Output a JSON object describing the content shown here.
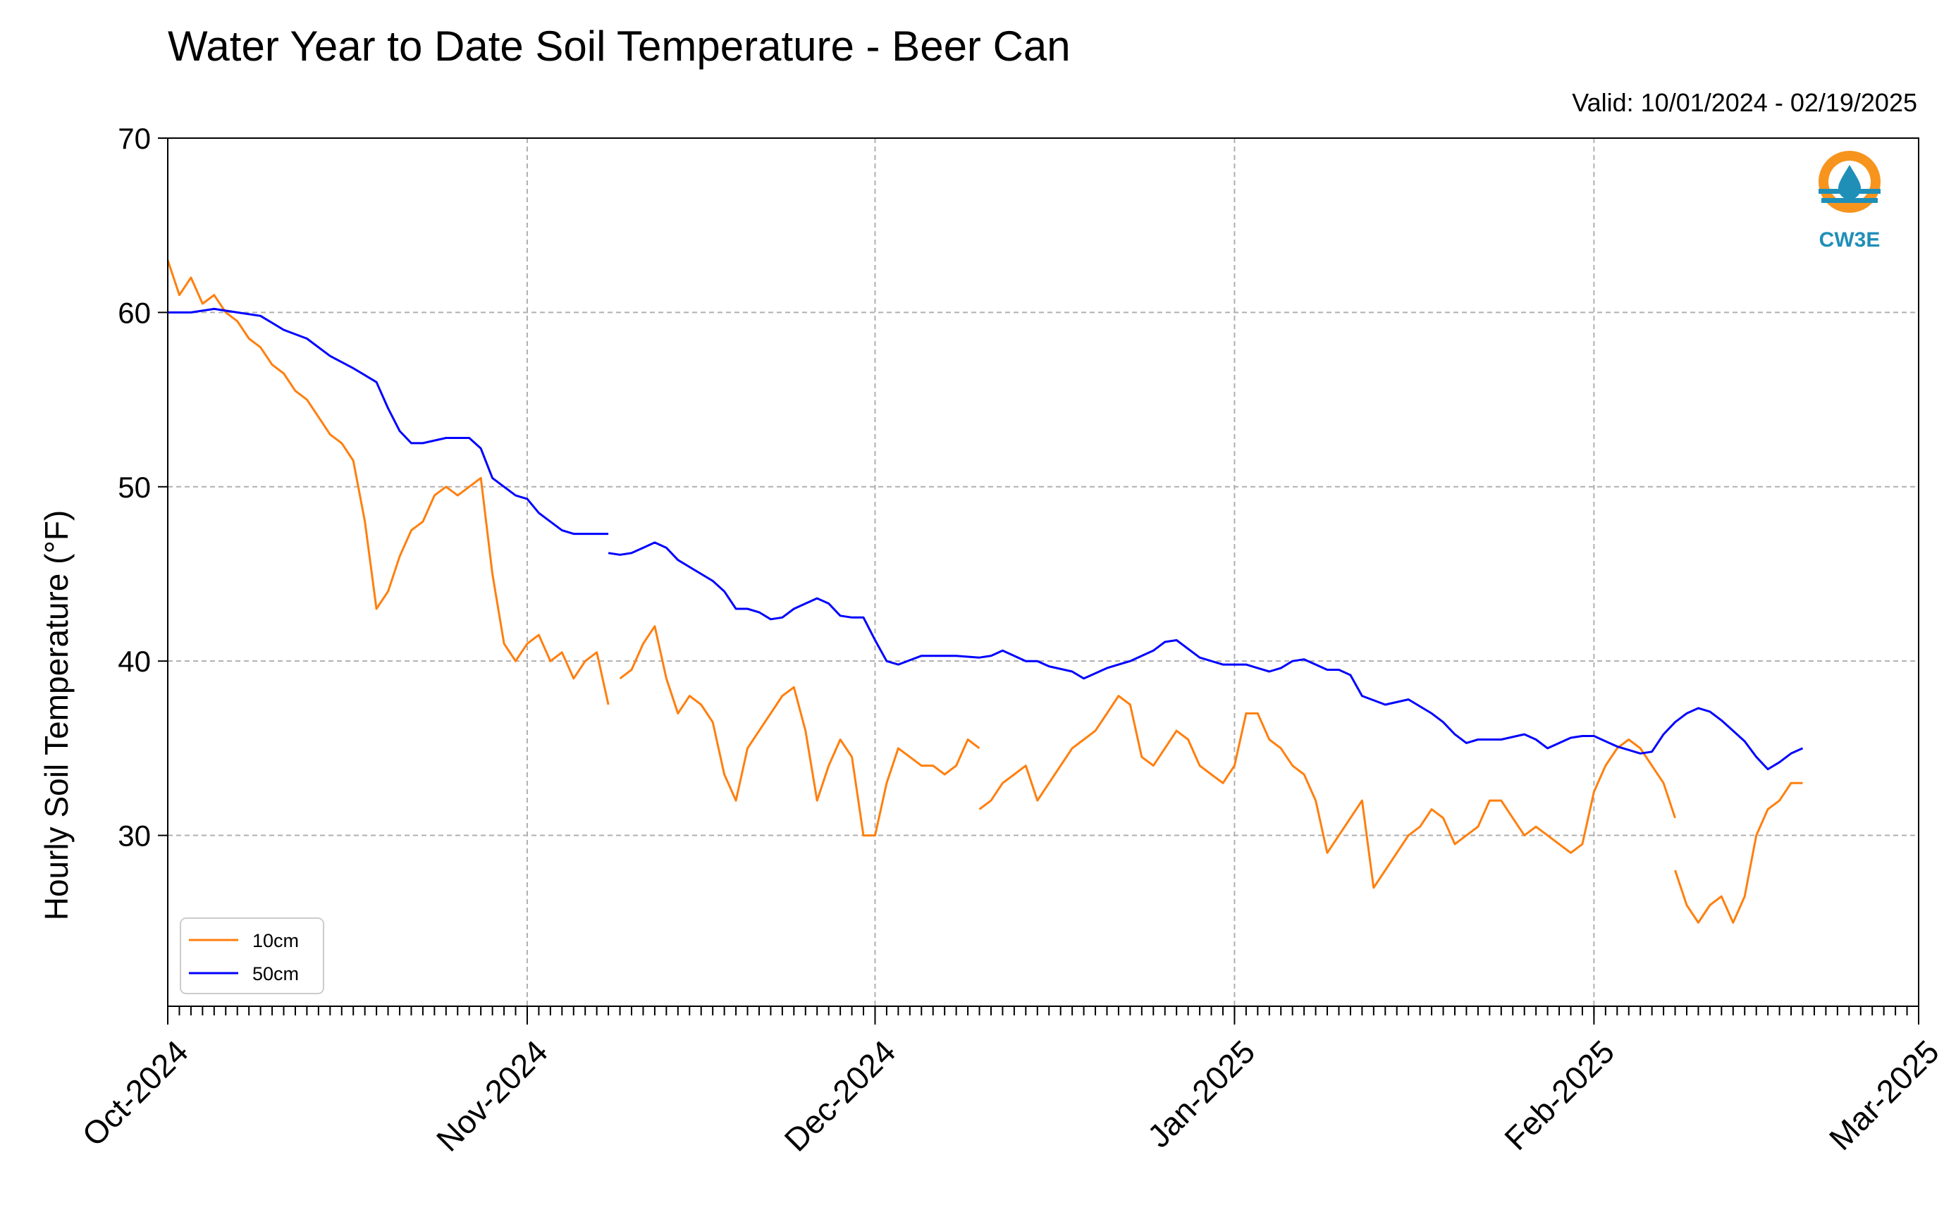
{
  "chart_data": {
    "type": "line",
    "title": "Water Year to Date Soil Temperature - Beer Can",
    "subtitle": "Valid: 10/01/2024 - 02/19/2025",
    "ylabel": "Hourly Soil Temperature (°F)",
    "xlabel": "",
    "ylim": [
      20.2,
      70
    ],
    "xlim": [
      "2024-10-01",
      "2025-03-01"
    ],
    "y_ticks": [
      "30",
      "40",
      "50",
      "60",
      "70"
    ],
    "x_ticks": [
      "Oct-2024",
      "Nov-2024",
      "Dec-2024",
      "Jan-2025",
      "Feb-2025",
      "Mar-2025"
    ],
    "grid": true,
    "legend_position": "lower-left",
    "logo_text": "CW3E",
    "series": [
      {
        "name": "10cm",
        "color": "#ff7f0e",
        "x": [
          "2024-10-01",
          "2024-10-02",
          "2024-10-03",
          "2024-10-04",
          "2024-10-05",
          "2024-10-06",
          "2024-10-07",
          "2024-10-08",
          "2024-10-09",
          "2024-10-10",
          "2024-10-11",
          "2024-10-12",
          "2024-10-13",
          "2024-10-14",
          "2024-10-15",
          "2024-10-16",
          "2024-10-17",
          "2024-10-18",
          "2024-10-19",
          "2024-10-20",
          "2024-10-21",
          "2024-10-22",
          "2024-10-23",
          "2024-10-24",
          "2024-10-25",
          "2024-10-26",
          "2024-10-27",
          "2024-10-28",
          "2024-10-29",
          "2024-10-30",
          "2024-10-31",
          "2024-11-01",
          "2024-11-02",
          "2024-11-03",
          "2024-11-04",
          "2024-11-05",
          "2024-11-06",
          "2024-11-07",
          "2024-11-08",
          null,
          "2024-11-09",
          "2024-11-10",
          "2024-11-11",
          "2024-11-12",
          "2024-11-13",
          "2024-11-14",
          "2024-11-15",
          "2024-11-16",
          "2024-11-17",
          "2024-11-18",
          "2024-11-19",
          "2024-11-20",
          "2024-11-21",
          "2024-11-22",
          "2024-11-23",
          "2024-11-24",
          "2024-11-25",
          "2024-11-26",
          "2024-11-27",
          "2024-11-28",
          "2024-11-29",
          "2024-11-30",
          "2024-12-01",
          "2024-12-02",
          "2024-12-03",
          "2024-12-04",
          "2024-12-05",
          "2024-12-06",
          "2024-12-07",
          "2024-12-08",
          "2024-12-09",
          "2024-12-10",
          null,
          "2024-12-10",
          "2024-12-11",
          "2024-12-12",
          "2024-12-13",
          "2024-12-14",
          "2024-12-15",
          "2024-12-16",
          "2024-12-17",
          "2024-12-18",
          "2024-12-19",
          "2024-12-20",
          "2024-12-21",
          "2024-12-22",
          "2024-12-23",
          "2024-12-24",
          "2024-12-25",
          "2024-12-26",
          "2024-12-27",
          "2024-12-28",
          "2024-12-29",
          "2024-12-30",
          "2024-12-31",
          "2025-01-01",
          "2025-01-02",
          "2025-01-03",
          "2025-01-04",
          "2025-01-05",
          "2025-01-06",
          "2025-01-07",
          "2025-01-08",
          "2025-01-09",
          "2025-01-10",
          "2025-01-11",
          "2025-01-12",
          "2025-01-13",
          "2025-01-14",
          "2025-01-15",
          "2025-01-16",
          "2025-01-17",
          "2025-01-18",
          "2025-01-19",
          "2025-01-20",
          "2025-01-21",
          "2025-01-22",
          "2025-01-23",
          "2025-01-24",
          "2025-01-25",
          "2025-01-26",
          "2025-01-27",
          "2025-01-28",
          "2025-01-29",
          "2025-01-30",
          "2025-01-31",
          "2025-02-01",
          "2025-02-02",
          "2025-02-03",
          "2025-02-04",
          "2025-02-05",
          "2025-02-06",
          "2025-02-07",
          "2025-02-08",
          null,
          "2025-02-08",
          "2025-02-09",
          "2025-02-10",
          "2025-02-11",
          "2025-02-12",
          "2025-02-13",
          "2025-02-14",
          "2025-02-15",
          "2025-02-16",
          "2025-02-17",
          "2025-02-18",
          "2025-02-19"
        ],
        "y": [
          63.0,
          61.0,
          62.0,
          60.5,
          61.0,
          60.0,
          59.5,
          58.5,
          58.0,
          57.0,
          56.5,
          55.5,
          55.0,
          54.0,
          53.0,
          52.5,
          51.5,
          48.0,
          43.0,
          44.0,
          46.0,
          47.5,
          48.0,
          49.5,
          50.0,
          49.5,
          50.0,
          50.5,
          45.0,
          41.0,
          40.0,
          41.0,
          41.5,
          40.0,
          40.5,
          39.0,
          40.0,
          40.5,
          37.5,
          null,
          39.0,
          39.5,
          41.0,
          42.0,
          39.0,
          37.0,
          38.0,
          37.5,
          36.5,
          33.5,
          32.0,
          35.0,
          36.0,
          37.0,
          38.0,
          38.5,
          36.0,
          32.0,
          34.0,
          35.5,
          34.5,
          30.0,
          30.0,
          33.0,
          35.0,
          34.5,
          34.0,
          34.0,
          33.5,
          34.0,
          35.5,
          35.0,
          null,
          31.5,
          32.0,
          33.0,
          33.5,
          34.0,
          32.0,
          33.0,
          34.0,
          35.0,
          35.5,
          36.0,
          37.0,
          38.0,
          37.5,
          34.5,
          34.0,
          35.0,
          36.0,
          35.5,
          34.0,
          33.5,
          33.0,
          34.0,
          37.0,
          37.0,
          35.5,
          35.0,
          34.0,
          33.5,
          32.0,
          29.0,
          30.0,
          31.0,
          32.0,
          27.0,
          28.0,
          29.0,
          30.0,
          30.5,
          31.5,
          31.0,
          29.5,
          30.0,
          30.5,
          32.0,
          32.0,
          31.0,
          30.0,
          30.5,
          30.0,
          29.5,
          29.0,
          29.5,
          32.5,
          34.0,
          35.0,
          35.5,
          35.0,
          34.0,
          33.0,
          31.0,
          null,
          28.0,
          26.0,
          25.0,
          26.0,
          26.5,
          25.0,
          26.5,
          30.0,
          31.5,
          32.0,
          33.0,
          33.0
        ]
      },
      {
        "name": "50cm",
        "color": "#0000ff",
        "x": [
          "2024-10-01",
          "2024-10-03",
          "2024-10-05",
          "2024-10-07",
          "2024-10-09",
          "2024-10-11",
          "2024-10-13",
          "2024-10-15",
          "2024-10-17",
          "2024-10-19",
          "2024-10-20",
          "2024-10-21",
          "2024-10-22",
          "2024-10-23",
          "2024-10-25",
          "2024-10-27",
          "2024-10-28",
          "2024-10-29",
          "2024-10-30",
          "2024-10-31",
          "2024-11-01",
          "2024-11-02",
          "2024-11-03",
          "2024-11-04",
          "2024-11-05",
          "2024-11-06",
          "2024-11-07",
          "2024-11-08",
          null,
          "2024-11-08",
          "2024-11-09",
          "2024-11-10",
          "2024-11-11",
          "2024-11-12",
          "2024-11-13",
          "2024-11-14",
          "2024-11-15",
          "2024-11-16",
          "2024-11-17",
          "2024-11-18",
          "2024-11-19",
          "2024-11-20",
          "2024-11-21",
          "2024-11-22",
          "2024-11-23",
          "2024-11-24",
          "2024-11-25",
          "2024-11-26",
          "2024-11-27",
          "2024-11-28",
          "2024-11-29",
          "2024-11-30",
          "2024-12-01",
          "2024-12-02",
          "2024-12-03",
          "2024-12-05",
          "2024-12-08",
          "2024-12-10",
          "2024-12-11",
          "2024-12-12",
          "2024-12-14",
          "2024-12-15",
          "2024-12-16",
          "2024-12-18",
          "2024-12-19",
          "2024-12-21",
          "2024-12-22",
          "2024-12-23",
          "2024-12-24",
          "2024-12-25",
          "2024-12-26",
          "2024-12-27",
          "2024-12-29",
          "2024-12-31",
          "2025-01-01",
          "2025-01-02",
          "2025-01-03",
          "2025-01-04",
          "2025-01-05",
          "2025-01-06",
          "2025-01-07",
          "2025-01-08",
          "2025-01-09",
          "2025-01-10",
          "2025-01-11",
          "2025-01-12",
          "2025-01-14",
          "2025-01-16",
          "2025-01-18",
          "2025-01-19",
          "2025-01-20",
          "2025-01-21",
          "2025-01-22",
          "2025-01-24",
          "2025-01-26",
          "2025-01-27",
          "2025-01-28",
          "2025-01-30",
          "2025-01-31",
          "2025-02-01",
          "2025-02-02",
          "2025-02-03",
          "2025-02-04",
          "2025-02-05",
          "2025-02-06",
          "2025-02-07",
          "2025-02-08",
          "2025-02-09",
          "2025-02-10",
          "2025-02-11",
          "2025-02-12",
          "2025-02-13",
          "2025-02-14",
          "2025-02-15",
          "2025-02-16",
          "2025-02-17",
          "2025-02-18",
          "2025-02-19"
        ],
        "y": [
          60.0,
          60.0,
          60.2,
          60.0,
          59.8,
          59.0,
          58.5,
          57.5,
          56.8,
          56.0,
          54.5,
          53.2,
          52.5,
          52.5,
          52.8,
          52.8,
          52.2,
          50.5,
          50.0,
          49.5,
          49.3,
          48.5,
          48.0,
          47.5,
          47.3,
          47.3,
          47.3,
          47.3,
          null,
          46.2,
          46.1,
          46.2,
          46.5,
          46.8,
          46.5,
          45.8,
          45.4,
          45.0,
          44.6,
          44.0,
          43.0,
          43.0,
          42.8,
          42.4,
          42.5,
          43.0,
          43.3,
          43.6,
          43.3,
          42.6,
          42.5,
          42.5,
          41.2,
          40.0,
          39.8,
          40.3,
          40.3,
          40.2,
          40.3,
          40.6,
          40.0,
          40.0,
          39.7,
          39.4,
          39.0,
          39.6,
          39.8,
          40.0,
          40.3,
          40.6,
          41.1,
          41.2,
          40.2,
          39.8,
          39.8,
          39.8,
          39.6,
          39.4,
          39.6,
          40.0,
          40.1,
          39.8,
          39.5,
          39.5,
          39.2,
          38.0,
          37.5,
          37.8,
          37.0,
          36.5,
          35.8,
          35.3,
          35.5,
          35.5,
          35.8,
          35.5,
          35.0,
          35.6,
          35.7,
          35.7,
          35.4,
          35.1,
          34.9,
          34.7,
          34.8,
          35.8,
          36.5,
          37.0,
          37.3,
          37.1,
          36.6,
          36.0,
          35.4,
          34.5,
          33.8,
          34.2,
          34.7,
          35.0
        ]
      }
    ]
  }
}
